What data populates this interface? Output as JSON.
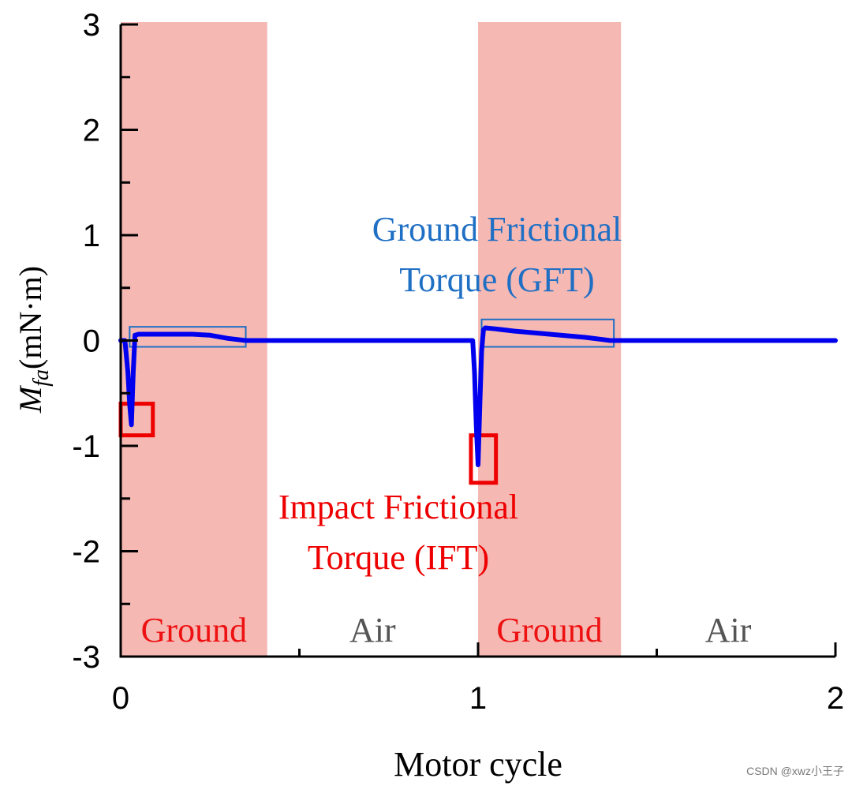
{
  "chart_data": {
    "type": "line",
    "xlabel": "Motor cycle",
    "ylabel": {
      "symbol": "M",
      "subscript": "fa",
      "unit": "(mN·m)"
    },
    "xlim": [
      0,
      2
    ],
    "ylim": [
      -3,
      3
    ],
    "xticks": [
      0,
      1,
      2
    ],
    "xtick_labels": [
      "0",
      "1",
      "2"
    ],
    "yticks": [
      -3,
      -2,
      -1,
      0,
      1,
      2,
      3
    ],
    "ytick_labels": [
      "-3",
      "-2",
      "-1",
      "0",
      "1",
      "2",
      "3"
    ],
    "grid": false,
    "phases": [
      {
        "label": "Ground",
        "start": 0.0,
        "end": 0.41,
        "shaded": true
      },
      {
        "label": "Air",
        "start": 0.41,
        "end": 1.0,
        "shaded": false
      },
      {
        "label": "Ground",
        "start": 1.0,
        "end": 1.4,
        "shaded": true
      },
      {
        "label": "Air",
        "start": 1.4,
        "end": 2.0,
        "shaded": false
      }
    ],
    "series": [
      {
        "name": "Mfa",
        "color": "#0000ee",
        "x": [
          0.0,
          0.012,
          0.02,
          0.025,
          0.03,
          0.035,
          0.04,
          0.05,
          0.1,
          0.2,
          0.25,
          0.3,
          0.35,
          0.4,
          0.5,
          0.7,
          0.9,
          0.985,
          0.99,
          0.995,
          1.0,
          1.005,
          1.01,
          1.015,
          1.02,
          1.05,
          1.1,
          1.2,
          1.3,
          1.37,
          1.45,
          1.6,
          1.8,
          2.0
        ],
        "y": [
          0.0,
          0.0,
          -0.3,
          -0.6,
          -0.8,
          -0.3,
          0.05,
          0.06,
          0.06,
          0.06,
          0.05,
          0.02,
          0.0,
          0.0,
          0.0,
          0.0,
          0.0,
          0.0,
          -0.3,
          -0.8,
          -1.18,
          -0.6,
          -0.1,
          0.1,
          0.12,
          0.11,
          0.09,
          0.06,
          0.03,
          0.0,
          0.0,
          0.0,
          0.0,
          0.0
        ]
      }
    ],
    "annotations": [
      {
        "kind": "box",
        "label": "GFT",
        "color": "#1f6fc4",
        "x0": 0.025,
        "x1": 0.35,
        "y0": -0.06,
        "y1": 0.13
      },
      {
        "kind": "box",
        "label": "GFT",
        "color": "#1f6fc4",
        "x0": 1.01,
        "x1": 1.38,
        "y0": -0.06,
        "y1": 0.2
      },
      {
        "kind": "box",
        "label": "IFT",
        "color": "#ee0000",
        "x0": 0.0,
        "x1": 0.09,
        "y0": -0.9,
        "y1": -0.6
      },
      {
        "kind": "box",
        "label": "IFT",
        "color": "#ee0000",
        "x0": 0.98,
        "x1": 1.05,
        "y0": -1.35,
        "y1": -0.9
      }
    ],
    "notes": {
      "gft": {
        "lines": [
          "Ground Frictional",
          "Torque (GFT)"
        ],
        "color": "#1f6fc4"
      },
      "ift": {
        "lines": [
          "Impact Frictional",
          "Torque (IFT)"
        ],
        "color": "#ee0000"
      }
    },
    "colors": {
      "shade": "#f5b8b3",
      "ground_text": "#ee1111",
      "air_text": "#555555"
    }
  },
  "watermark": "CSDN @xwz小王子"
}
